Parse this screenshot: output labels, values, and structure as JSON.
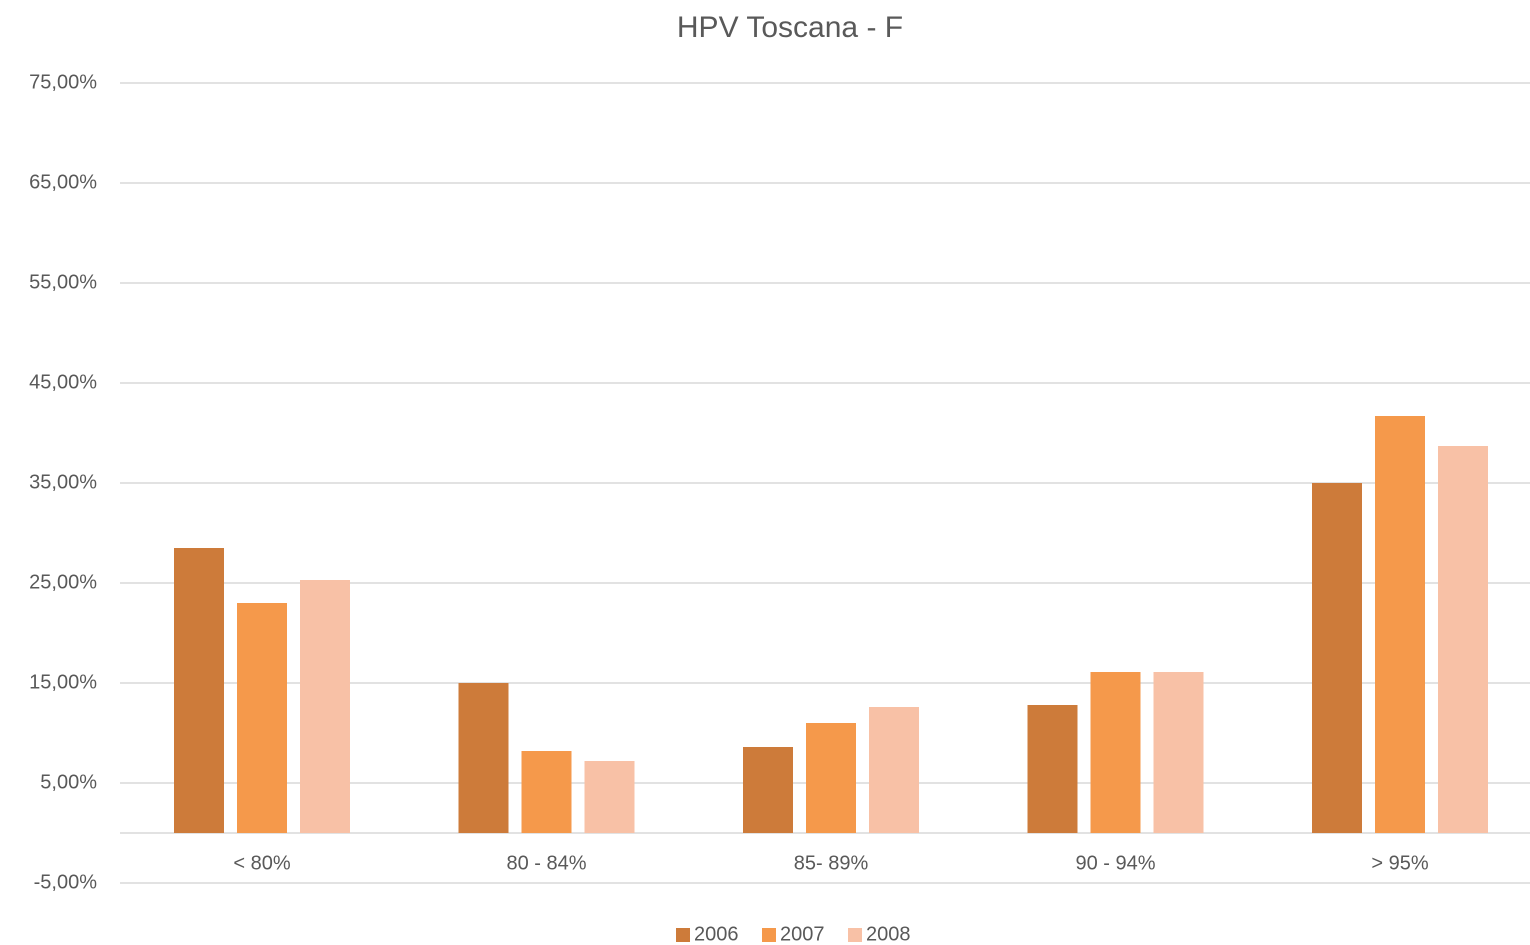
{
  "chart_data": {
    "type": "bar",
    "title": "HPV Toscana - F",
    "categories": [
      "< 80%",
      "80 - 84%",
      "85- 89%",
      "90 - 94%",
      "> 95%"
    ],
    "series": [
      {
        "name": "2006",
        "color": "#cd7b3a",
        "values": [
          28.5,
          15.0,
          8.6,
          12.8,
          35.0
        ]
      },
      {
        "name": "2007",
        "color": "#f5994b",
        "values": [
          23.0,
          8.2,
          11.0,
          16.1,
          41.7
        ]
      },
      {
        "name": "2008",
        "color": "#f8c1a6",
        "values": [
          25.3,
          7.2,
          12.6,
          16.1,
          38.7
        ]
      }
    ],
    "ylim": [
      -5,
      75
    ],
    "yticks": [
      {
        "value": -5,
        "label": "-5,00%"
      },
      {
        "value": 5,
        "label": "5,00%"
      },
      {
        "value": 15,
        "label": "15,00%"
      },
      {
        "value": 25,
        "label": "25,00%"
      },
      {
        "value": 35,
        "label": "35,00%"
      },
      {
        "value": 45,
        "label": "45,00%"
      },
      {
        "value": 55,
        "label": "55,00%"
      },
      {
        "value": 65,
        "label": "65,00%"
      },
      {
        "value": 75,
        "label": "75,00%"
      }
    ],
    "grid": true,
    "legend": "bottom"
  }
}
